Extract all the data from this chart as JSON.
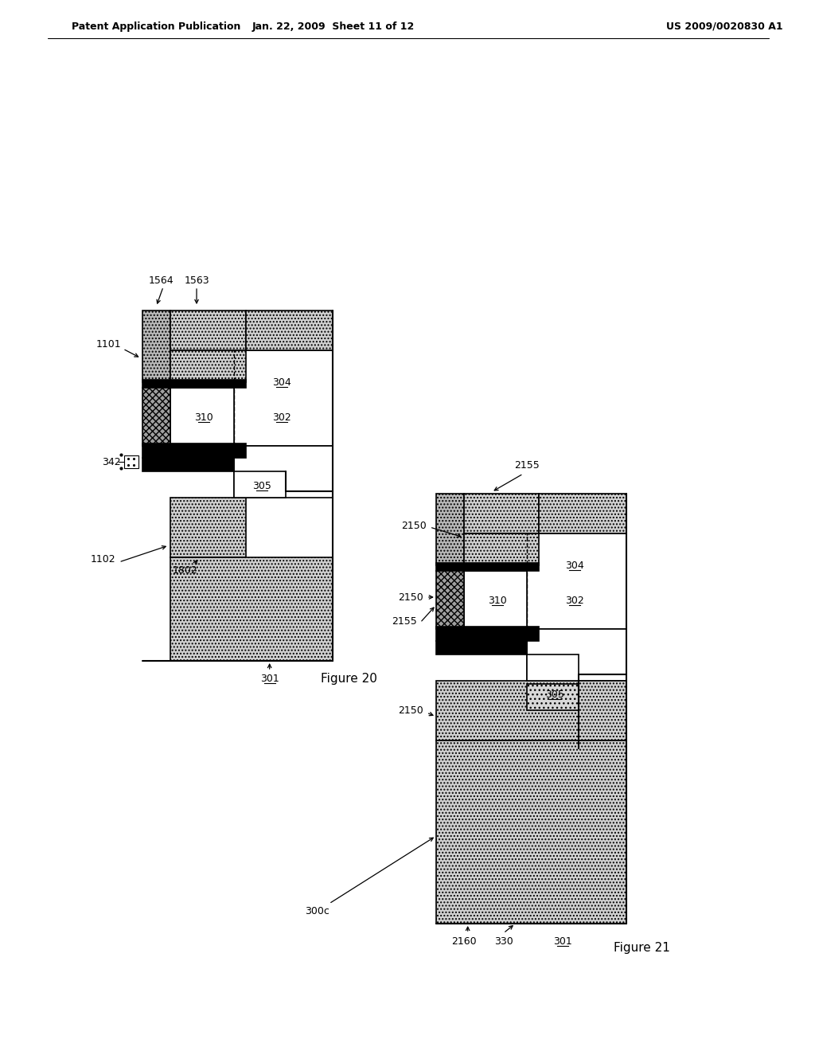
{
  "header_left": "Patent Application Publication",
  "header_mid": "Jan. 22, 2009  Sheet 11 of 12",
  "header_right": "US 2009/0020830 A1",
  "fig20_label": "Figure 20",
  "fig21_label": "Figure 21",
  "bg_color": "#ffffff"
}
